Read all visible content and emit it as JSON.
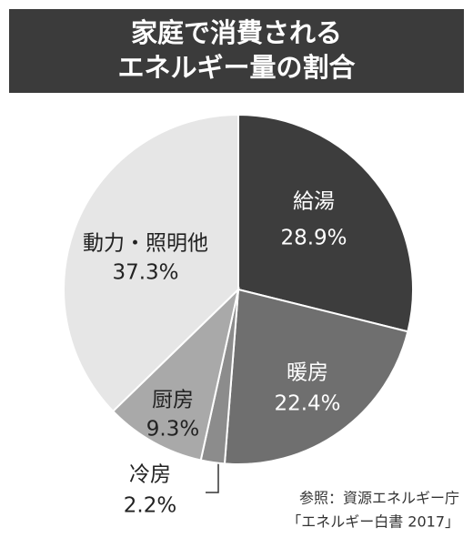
{
  "chart_data": {
    "type": "pie",
    "title": [
      "家庭で消費される",
      "エネルギー量の割合"
    ],
    "categories": [
      "給湯",
      "暖房",
      "冷房",
      "厨房",
      "動力・照明他"
    ],
    "values": [
      28.9,
      22.4,
      2.2,
      9.3,
      37.3
    ],
    "value_labels": [
      "28.9%",
      "22.4%",
      "2.2%",
      "9.3%",
      "37.3%"
    ],
    "colors": [
      "#3d3d3d",
      "#6f6f6f",
      "#8c8c8c",
      "#a9a9a9",
      "#e6e6e6"
    ],
    "source": [
      "参照：資源エネルギー庁",
      "「エネルギー白書 2017」"
    ]
  }
}
